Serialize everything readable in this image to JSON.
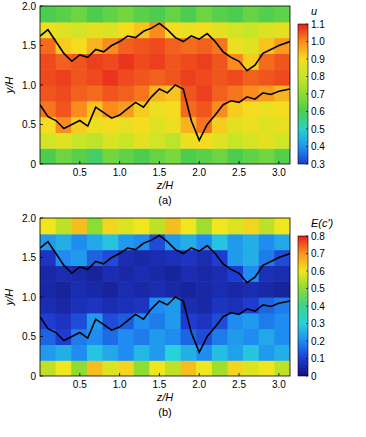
{
  "chart_data": [
    {
      "type": "heatmap",
      "title": "(a)",
      "xlabel": "z/H",
      "ylabel": "y/H",
      "xlim": [
        0,
        3.14
      ],
      "ylim": [
        0,
        2
      ],
      "xticks": [
        0.5,
        {
          "value": 1,
          "label": "1.0"
        },
        1.5,
        {
          "value": 2,
          "label": "2.0"
        },
        2.5,
        {
          "value": 3,
          "label": "3.0"
        }
      ],
      "yticks": [
        0,
        0.5,
        {
          "value": 1,
          "label": "1.0"
        },
        1.5,
        {
          "value": 2,
          "label": "2.0"
        }
      ],
      "colorbar_title": "u",
      "colorbar_range": [
        0.3,
        1.1
      ],
      "colorbar_ticks": [
        0.3,
        0.4,
        0.5,
        0.6,
        0.7,
        0.8,
        0.9,
        {
          "value": 1,
          "label": "1.0"
        },
        1.1
      ],
      "cells": [
        [
          0.6,
          0.65,
          0.62,
          0.58,
          0.66,
          0.63,
          0.6,
          0.64,
          0.67,
          0.6,
          0.62,
          0.65,
          0.6,
          0.63,
          0.66,
          0.61
        ],
        [
          0.82,
          0.85,
          0.8,
          0.78,
          0.84,
          0.8,
          0.86,
          0.82,
          0.78,
          0.88,
          0.9,
          0.85,
          0.8,
          0.83,
          0.86,
          0.82
        ],
        [
          0.9,
          1.0,
          0.92,
          0.88,
          0.9,
          0.87,
          0.9,
          0.85,
          0.88,
          0.95,
          1.02,
          0.92,
          0.86,
          0.88,
          0.85,
          0.87
        ],
        [
          1.02,
          1.05,
          1.0,
          0.93,
          1.0,
          0.98,
          0.92,
          0.88,
          0.9,
          1.03,
          1.05,
          1.0,
          0.92,
          0.9,
          0.88,
          0.9
        ],
        [
          1.05,
          1.06,
          1.04,
          1.03,
          1.05,
          1.04,
          1.02,
          0.95,
          0.93,
          1.05,
          1.07,
          1.04,
          1.02,
          1.0,
          0.98,
          0.95
        ],
        [
          1.06,
          1.07,
          1.05,
          1.06,
          1.08,
          1.06,
          1.05,
          1.04,
          1.05,
          1.07,
          1.06,
          1.05,
          1.06,
          1.04,
          1.05,
          1.06
        ],
        [
          1.06,
          1.04,
          1.05,
          1.07,
          1.06,
          1.08,
          1.06,
          1.07,
          1.05,
          1.06,
          1.07,
          1.05,
          1.0,
          0.92,
          1.03,
          1.05
        ],
        [
          1.03,
          0.92,
          0.9,
          0.95,
          1.0,
          1.04,
          1.05,
          1.06,
          1.04,
          1.03,
          1.04,
          1.02,
          0.88,
          0.85,
          0.93,
          0.98
        ],
        [
          0.88,
          0.85,
          0.82,
          0.86,
          0.84,
          0.9,
          0.93,
          1.0,
          0.9,
          0.88,
          0.9,
          0.86,
          0.82,
          0.8,
          0.84,
          0.86
        ],
        [
          0.6,
          0.62,
          0.65,
          0.6,
          0.63,
          0.66,
          0.62,
          0.6,
          0.64,
          0.6,
          0.65,
          0.62,
          0.6,
          0.64,
          0.61,
          0.63
        ]
      ],
      "contours": [
        {
          "x": [
            0,
            0.1,
            0.2,
            0.3,
            0.4,
            0.5,
            0.6,
            0.7,
            0.8,
            0.9,
            1.0,
            1.1,
            1.2,
            1.3,
            1.4,
            1.5,
            1.6,
            1.7,
            1.8,
            1.9,
            2.0,
            2.1,
            2.2,
            2.3,
            2.4,
            2.5,
            2.6,
            2.7,
            2.8,
            2.9,
            3.0,
            3.14
          ],
          "y": [
            1.62,
            1.7,
            1.55,
            1.4,
            1.3,
            1.38,
            1.35,
            1.45,
            1.42,
            1.5,
            1.55,
            1.62,
            1.6,
            1.68,
            1.72,
            1.78,
            1.7,
            1.6,
            1.55,
            1.62,
            1.58,
            1.65,
            1.55,
            1.42,
            1.35,
            1.3,
            1.18,
            1.25,
            1.4,
            1.45,
            1.5,
            1.55
          ]
        },
        {
          "x": [
            0,
            0.1,
            0.2,
            0.3,
            0.4,
            0.5,
            0.6,
            0.7,
            0.8,
            0.9,
            1.0,
            1.1,
            1.2,
            1.3,
            1.4,
            1.5,
            1.6,
            1.7,
            1.8,
            1.9,
            2.0,
            2.1,
            2.2,
            2.3,
            2.4,
            2.5,
            2.6,
            2.7,
            2.8,
            2.9,
            3.0,
            3.14
          ],
          "y": [
            0.75,
            0.6,
            0.55,
            0.45,
            0.5,
            0.55,
            0.48,
            0.72,
            0.65,
            0.58,
            0.62,
            0.7,
            0.78,
            0.72,
            0.85,
            0.95,
            0.9,
            1.0,
            0.95,
            0.55,
            0.3,
            0.5,
            0.62,
            0.75,
            0.8,
            0.78,
            0.85,
            0.82,
            0.9,
            0.88,
            0.92,
            0.95
          ]
        }
      ]
    },
    {
      "type": "heatmap",
      "title": "(b)",
      "xlabel": "z/H",
      "ylabel": "y/H",
      "xlim": [
        0,
        3.14
      ],
      "ylim": [
        0,
        2
      ],
      "xticks": [
        0.5,
        {
          "value": 1,
          "label": "1.0"
        },
        1.5,
        {
          "value": 2,
          "label": "2.0"
        },
        2.5,
        {
          "value": 3,
          "label": "3.0"
        }
      ],
      "yticks": [
        0,
        0.5,
        {
          "value": 1,
          "label": "1.0"
        },
        1.5,
        {
          "value": 2,
          "label": "2.0"
        }
      ],
      "colorbar_title": "E(c')",
      "colorbar_range": [
        0,
        0.8
      ],
      "colorbar_ticks": [
        0,
        0.1,
        0.2,
        0.3,
        0.4,
        0.5,
        0.6,
        0.7,
        0.8
      ],
      "cells": [
        [
          0.55,
          0.6,
          0.5,
          0.65,
          0.58,
          0.62,
          0.5,
          0.6,
          0.55,
          0.65,
          0.6,
          0.52,
          0.62,
          0.58,
          0.6,
          0.55
        ],
        [
          0.22,
          0.25,
          0.2,
          0.28,
          0.24,
          0.2,
          0.26,
          0.22,
          0.3,
          0.25,
          0.2,
          0.27,
          0.23,
          0.28,
          0.22,
          0.25
        ],
        [
          0.15,
          0.1,
          0.18,
          0.2,
          0.16,
          0.2,
          0.18,
          0.22,
          0.2,
          0.15,
          0.12,
          0.18,
          0.22,
          0.2,
          0.24,
          0.2
        ],
        [
          0.1,
          0.08,
          0.12,
          0.22,
          0.12,
          0.14,
          0.2,
          0.18,
          0.22,
          0.1,
          0.08,
          0.12,
          0.2,
          0.22,
          0.18,
          0.2
        ],
        [
          0.06,
          0.05,
          0.07,
          0.08,
          0.06,
          0.07,
          0.08,
          0.2,
          0.22,
          0.06,
          0.05,
          0.08,
          0.07,
          0.1,
          0.15,
          0.18
        ],
        [
          0.05,
          0.04,
          0.06,
          0.05,
          0.04,
          0.06,
          0.05,
          0.06,
          0.05,
          0.04,
          0.05,
          0.06,
          0.05,
          0.06,
          0.05,
          0.04
        ],
        [
          0.05,
          0.06,
          0.05,
          0.04,
          0.06,
          0.05,
          0.06,
          0.05,
          0.04,
          0.06,
          0.05,
          0.06,
          0.1,
          0.2,
          0.07,
          0.06
        ],
        [
          0.08,
          0.2,
          0.22,
          0.15,
          0.12,
          0.06,
          0.05,
          0.06,
          0.07,
          0.08,
          0.06,
          0.1,
          0.22,
          0.25,
          0.18,
          0.12
        ],
        [
          0.22,
          0.25,
          0.2,
          0.24,
          0.28,
          0.22,
          0.2,
          0.12,
          0.22,
          0.25,
          0.2,
          0.28,
          0.22,
          0.25,
          0.2,
          0.24
        ],
        [
          0.6,
          0.55,
          0.65,
          0.5,
          0.62,
          0.58,
          0.6,
          0.55,
          0.65,
          0.6,
          0.52,
          0.6,
          0.58,
          0.62,
          0.55,
          0.6
        ]
      ],
      "contours": [
        {
          "x": [
            0,
            0.1,
            0.2,
            0.3,
            0.4,
            0.5,
            0.6,
            0.7,
            0.8,
            0.9,
            1.0,
            1.1,
            1.2,
            1.3,
            1.4,
            1.5,
            1.6,
            1.7,
            1.8,
            1.9,
            2.0,
            2.1,
            2.2,
            2.3,
            2.4,
            2.5,
            2.6,
            2.7,
            2.8,
            2.9,
            3.0,
            3.14
          ],
          "y": [
            1.62,
            1.7,
            1.55,
            1.4,
            1.3,
            1.38,
            1.35,
            1.45,
            1.42,
            1.5,
            1.55,
            1.62,
            1.6,
            1.68,
            1.72,
            1.78,
            1.7,
            1.6,
            1.55,
            1.62,
            1.58,
            1.65,
            1.55,
            1.42,
            1.35,
            1.3,
            1.18,
            1.25,
            1.4,
            1.45,
            1.5,
            1.55
          ]
        },
        {
          "x": [
            0,
            0.1,
            0.2,
            0.3,
            0.4,
            0.5,
            0.6,
            0.7,
            0.8,
            0.9,
            1.0,
            1.1,
            1.2,
            1.3,
            1.4,
            1.5,
            1.6,
            1.7,
            1.8,
            1.9,
            2.0,
            2.1,
            2.2,
            2.3,
            2.4,
            2.5,
            2.6,
            2.7,
            2.8,
            2.9,
            3.0,
            3.14
          ],
          "y": [
            0.75,
            0.6,
            0.55,
            0.45,
            0.5,
            0.55,
            0.48,
            0.72,
            0.65,
            0.58,
            0.62,
            0.7,
            0.78,
            0.72,
            0.85,
            0.95,
            0.9,
            1.0,
            0.95,
            0.55,
            0.3,
            0.5,
            0.62,
            0.75,
            0.8,
            0.78,
            0.85,
            0.82,
            0.9,
            0.88,
            0.92,
            0.95
          ]
        }
      ]
    }
  ]
}
